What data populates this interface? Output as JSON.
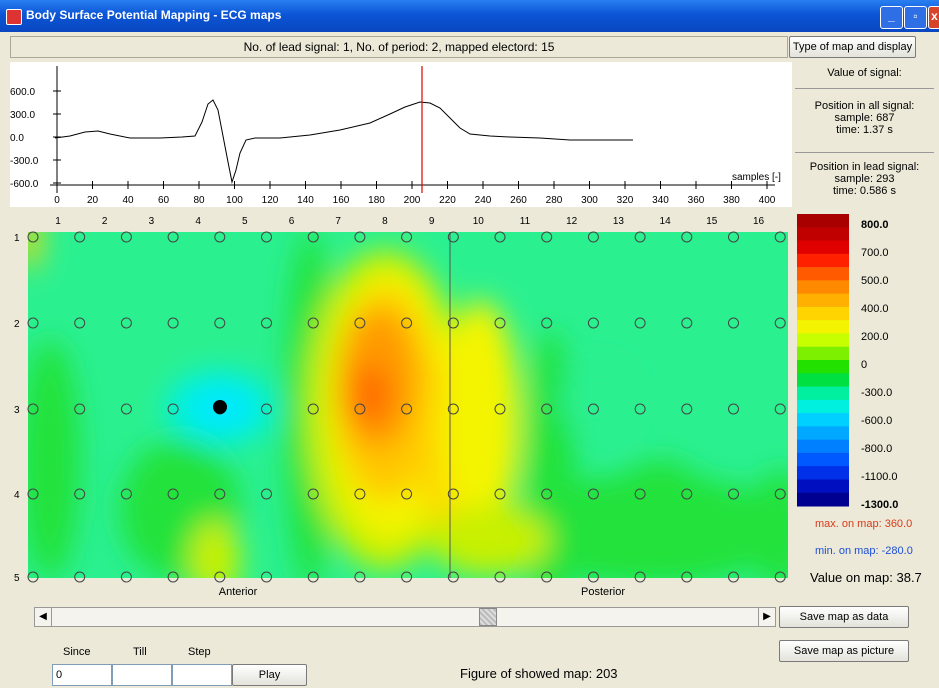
{
  "window": {
    "title": "Body Surface Potential Mapping - ECG maps",
    "buttons": {
      "minimize": "_",
      "maximize": "▫",
      "close": "x"
    }
  },
  "header": {
    "info": "No. of lead signal: 1, No. of period: 2, mapped electord: 15",
    "map_type_button": "Type of map and display"
  },
  "signal_panel": {
    "y_ticks": [
      "600.0",
      "300.0",
      "0.0",
      "-300.0",
      "-600.0"
    ],
    "x_ticks": [
      "0",
      "20",
      "40",
      "60",
      "80",
      "100",
      "120",
      "140",
      "160",
      "180",
      "200",
      "220",
      "240",
      "260",
      "280",
      "300",
      "320",
      "340",
      "360",
      "380",
      "400"
    ],
    "x_unit": "samples [-]"
  },
  "info_panel": {
    "value_label": "Value of signal:",
    "all_label": "Position in all signal:",
    "all_sample": "sample: 687",
    "all_time": "time: 1.37 s",
    "lead_label": "Position in lead signal:",
    "lead_sample": "sample: 293",
    "lead_time": "time: 0.586 s"
  },
  "map": {
    "columns": [
      "1",
      "2",
      "3",
      "4",
      "5",
      "6",
      "7",
      "8",
      "9",
      "10",
      "11",
      "12",
      "13",
      "14",
      "15",
      "16"
    ],
    "rows": [
      "1",
      "2",
      "3",
      "4",
      "5"
    ],
    "bottom_left_label": "Anterior",
    "bottom_right_label": "Posterior"
  },
  "legend": {
    "labels": [
      "800.0",
      "700.0",
      "500.0",
      "400.0",
      "200.0",
      "0",
      "-300.0",
      "-600.0",
      "-800.0",
      "-1100.0",
      "-1300.0"
    ],
    "colors": [
      "#a80000",
      "#c00000",
      "#e00000",
      "#ff2000",
      "#ff5a00",
      "#ff8a00",
      "#ffb000",
      "#ffd400",
      "#f4f400",
      "#c8ff00",
      "#7cf000",
      "#22e000",
      "#00e040",
      "#00f0a0",
      "#00f0e0",
      "#00d0ff",
      "#00a8ff",
      "#0080ff",
      "#0058ff",
      "#0030e8",
      "#0010c0",
      "#000090"
    ],
    "max_text": "max. on map: 360.0",
    "min_text": "min. on map: -280.0",
    "value_text": "Value on map: 38.7"
  },
  "scroll": {
    "left_arrow": "◀",
    "right_arrow": "▶",
    "position": 0.62
  },
  "controls": {
    "since_label": "Since",
    "till_label": "Till",
    "step_label": "Step",
    "since_value": "0",
    "till_value": "",
    "step_value": "",
    "play_button": "Play",
    "save_data_button": "Save map as data",
    "save_picture_button": "Save map as picture",
    "figure_text": "Figure of showed map: 203"
  }
}
